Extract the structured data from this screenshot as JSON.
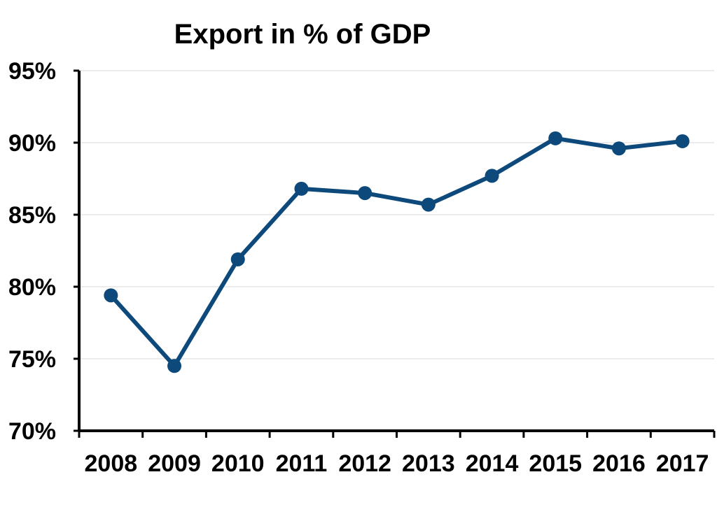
{
  "chart_data": {
    "type": "line",
    "title": "Export in % of GDP",
    "xlabel": "",
    "ylabel": "",
    "categories": [
      "2008",
      "2009",
      "2010",
      "2011",
      "2012",
      "2013",
      "2014",
      "2015",
      "2016",
      "2017"
    ],
    "series": [
      {
        "values": [
          79.4,
          74.5,
          81.9,
          86.8,
          86.5,
          85.7,
          87.7,
          90.3,
          89.6,
          90.1
        ]
      }
    ],
    "ylim": [
      70,
      95
    ],
    "yticks": [
      70,
      75,
      80,
      85,
      90,
      95
    ],
    "ytick_labels": [
      "70%",
      "75%",
      "80%",
      "85%",
      "90%",
      "95%"
    ],
    "grid": true,
    "legend": "none",
    "colors": {
      "line": "#0d4a7b",
      "grid": "#d9d9d9",
      "axis": "#000000"
    }
  }
}
